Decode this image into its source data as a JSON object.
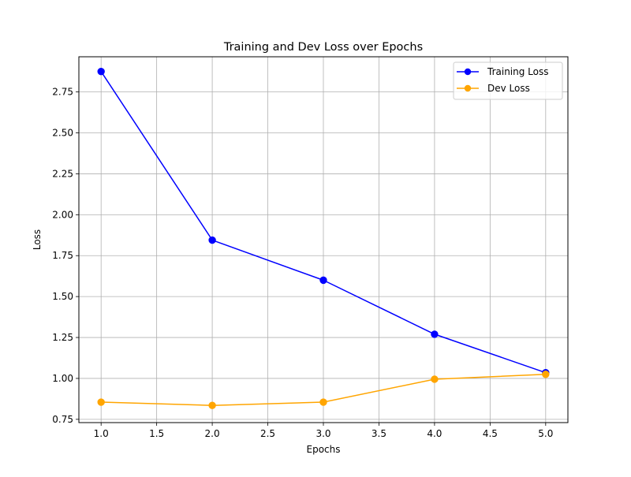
{
  "chart_data": {
    "type": "line",
    "title": "Training and Dev Loss over Epochs",
    "xlabel": "Epochs",
    "ylabel": "Loss",
    "x": [
      1,
      2,
      3,
      4,
      5
    ],
    "xlim": [
      0.8,
      5.2
    ],
    "ylim": [
      0.73,
      2.965
    ],
    "xticks": [
      1.0,
      1.5,
      2.0,
      2.5,
      3.0,
      3.5,
      4.0,
      4.5,
      5.0
    ],
    "xtick_labels": [
      "1.0",
      "1.5",
      "2.0",
      "2.5",
      "3.0",
      "3.5",
      "4.0",
      "4.5",
      "5.0"
    ],
    "yticks": [
      0.75,
      1.0,
      1.25,
      1.5,
      1.75,
      2.0,
      2.25,
      2.5,
      2.75
    ],
    "ytick_labels": [
      "0.75",
      "1.00",
      "1.25",
      "1.50",
      "1.75",
      "2.00",
      "2.25",
      "2.50",
      "2.75"
    ],
    "grid": true,
    "legend_position": "top-right",
    "series": [
      {
        "name": "Training Loss",
        "color": "#0000ff",
        "marker": "circle",
        "values": [
          2.875,
          1.845,
          1.6,
          1.27,
          1.035
        ]
      },
      {
        "name": "Dev Loss",
        "color": "#ffa500",
        "marker": "circle",
        "values": [
          0.855,
          0.835,
          0.855,
          0.995,
          1.025
        ]
      }
    ]
  }
}
